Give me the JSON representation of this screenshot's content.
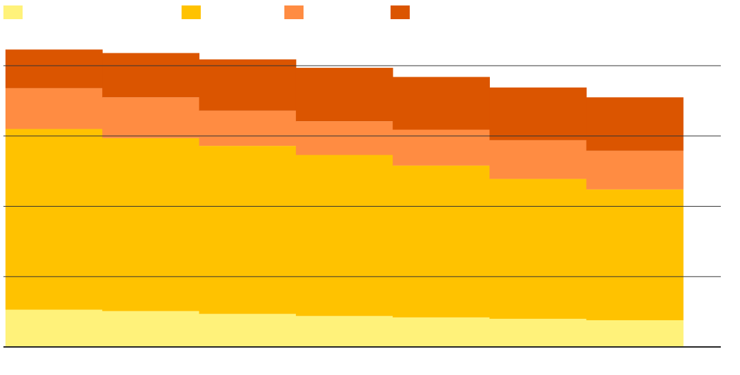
{
  "chart_data": {
    "type": "stacked-step-area",
    "categories": [
      null,
      null,
      null,
      null,
      null,
      null,
      null
    ],
    "series": [
      {
        "color": "#FFF27A",
        "values": [
          0.53,
          0.51,
          0.47,
          0.44,
          0.42,
          0.4,
          0.38
        ]
      },
      {
        "color": "#FFC200",
        "values": [
          2.57,
          2.46,
          2.39,
          2.29,
          2.16,
          1.99,
          1.86
        ]
      },
      {
        "color": "#FF8C42",
        "values": [
          0.58,
          0.58,
          0.5,
          0.48,
          0.51,
          0.55,
          0.55
        ]
      },
      {
        "color": "#DB5500",
        "values": [
          0.55,
          0.63,
          0.73,
          0.76,
          0.75,
          0.75,
          0.76
        ]
      }
    ],
    "ylim": [
      0,
      4.5
    ],
    "yticks": [
      0,
      1,
      2,
      3,
      4
    ],
    "grid": true
  }
}
